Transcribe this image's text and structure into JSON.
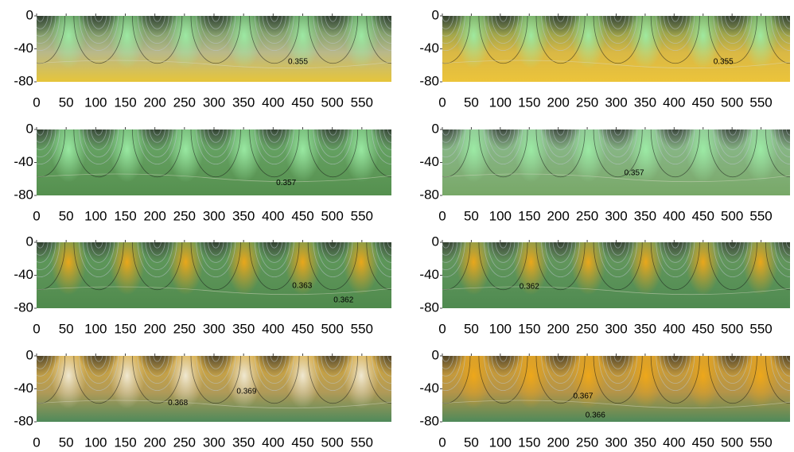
{
  "chart_data": [
    {
      "type": "contour",
      "xlim": [
        0,
        600
      ],
      "ylim": [
        -80,
        0
      ],
      "xticks": [
        0,
        50,
        100,
        150,
        200,
        250,
        300,
        350,
        400,
        450,
        500,
        550
      ],
      "yticks": [
        0,
        -40,
        -80
      ],
      "contour_labels": [
        {
          "level": 0.355,
          "x": 442,
          "y": -56
        }
      ]
    },
    {
      "type": "contour",
      "xlim": [
        0,
        600
      ],
      "ylim": [
        -80,
        0
      ],
      "xticks": [
        0,
        50,
        100,
        150,
        200,
        250,
        300,
        350,
        400,
        450,
        500,
        550
      ],
      "yticks": [
        0,
        -40,
        -80
      ],
      "contour_labels": [
        {
          "level": 0.355,
          "x": 485,
          "y": -56
        }
      ]
    },
    {
      "type": "contour",
      "xlim": [
        0,
        600
      ],
      "ylim": [
        -80,
        0
      ],
      "xticks": [
        0,
        50,
        100,
        150,
        200,
        250,
        300,
        350,
        400,
        450,
        500,
        550
      ],
      "yticks": [
        0,
        -40,
        -80
      ],
      "contour_labels": [
        {
          "level": 0.357,
          "x": 422,
          "y": -65
        }
      ]
    },
    {
      "type": "contour",
      "xlim": [
        0,
        600
      ],
      "ylim": [
        -80,
        0
      ],
      "xticks": [
        0,
        50,
        100,
        150,
        200,
        250,
        300,
        350,
        400,
        450,
        500,
        550
      ],
      "yticks": [
        0,
        -40,
        -80
      ],
      "contour_labels": [
        {
          "level": 0.357,
          "x": 331,
          "y": -53
        }
      ]
    },
    {
      "type": "contour",
      "xlim": [
        0,
        600
      ],
      "ylim": [
        -80,
        0
      ],
      "xticks": [
        0,
        50,
        100,
        150,
        200,
        250,
        300,
        350,
        400,
        450,
        500,
        550
      ],
      "yticks": [
        0,
        -40,
        -80
      ],
      "contour_labels": [
        {
          "level": 0.363,
          "x": 449,
          "y": -53
        },
        {
          "level": 0.362,
          "x": 519,
          "y": -70
        }
      ]
    },
    {
      "type": "contour",
      "xlim": [
        0,
        600
      ],
      "ylim": [
        -80,
        0
      ],
      "xticks": [
        0,
        50,
        100,
        150,
        200,
        250,
        300,
        350,
        400,
        450,
        500,
        550
      ],
      "yticks": [
        0,
        -40,
        -80
      ],
      "contour_labels": [
        {
          "level": 0.362,
          "x": 150,
          "y": -54
        }
      ]
    },
    {
      "type": "contour",
      "xlim": [
        0,
        600
      ],
      "ylim": [
        -80,
        0
      ],
      "xticks": [
        0,
        50,
        100,
        150,
        200,
        250,
        300,
        350,
        400,
        450,
        500,
        550
      ],
      "yticks": [
        0,
        -40,
        -80
      ],
      "contour_labels": [
        {
          "level": 0.368,
          "x": 239,
          "y": -57
        },
        {
          "level": 0.369,
          "x": 355,
          "y": -43
        }
      ]
    },
    {
      "type": "contour",
      "xlim": [
        0,
        600
      ],
      "ylim": [
        -80,
        0
      ],
      "xticks": [
        0,
        50,
        100,
        150,
        200,
        250,
        300,
        350,
        400,
        450,
        500,
        550
      ],
      "yticks": [
        0,
        -40,
        -80
      ],
      "contour_labels": [
        {
          "level": 0.367,
          "x": 243,
          "y": -49
        },
        {
          "level": 0.366,
          "x": 264,
          "y": -72
        }
      ]
    }
  ]
}
